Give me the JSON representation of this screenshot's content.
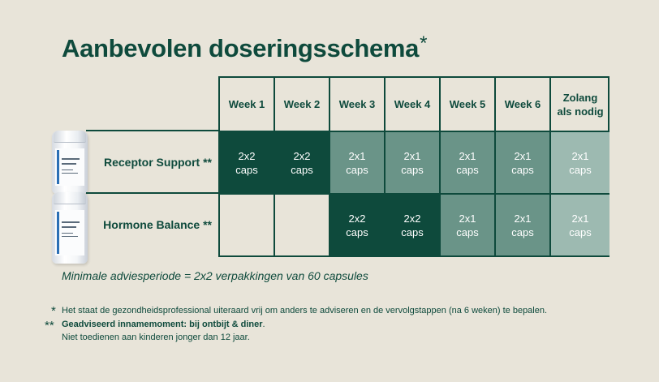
{
  "title": "Aanbevolen doseringsschema",
  "title_mark": "*",
  "table": {
    "columns": [
      "Week 1",
      "Week 2",
      "Week 3",
      "Week 4",
      "Week 5",
      "Week 6",
      "Zolang als nodig"
    ],
    "rows": [
      {
        "product": "Receptor Support **",
        "cells": [
          {
            "dose": "2x2",
            "unit": "caps",
            "shade": "dark"
          },
          {
            "dose": "2x2",
            "unit": "caps",
            "shade": "dark"
          },
          {
            "dose": "2x1",
            "unit": "caps",
            "shade": "mid"
          },
          {
            "dose": "2x1",
            "unit": "caps",
            "shade": "mid"
          },
          {
            "dose": "2x1",
            "unit": "caps",
            "shade": "mid"
          },
          {
            "dose": "2x1",
            "unit": "caps",
            "shade": "mid"
          },
          {
            "dose": "2x1",
            "unit": "caps",
            "shade": "light"
          }
        ]
      },
      {
        "product": "Hormone Balance **",
        "cells": [
          {
            "dose": "",
            "unit": "",
            "shade": "empty"
          },
          {
            "dose": "",
            "unit": "",
            "shade": "empty"
          },
          {
            "dose": "2x2",
            "unit": "caps",
            "shade": "dark"
          },
          {
            "dose": "2x2",
            "unit": "caps",
            "shade": "dark"
          },
          {
            "dose": "2x1",
            "unit": "caps",
            "shade": "mid"
          },
          {
            "dose": "2x1",
            "unit": "caps",
            "shade": "mid"
          },
          {
            "dose": "2x1",
            "unit": "caps",
            "shade": "light"
          }
        ]
      }
    ]
  },
  "bottles": [
    {
      "icon": "receptor-support-bottle-icon",
      "label_text": "Receptor Support"
    },
    {
      "icon": "hormone-balance-bottle-icon",
      "label_text": "Hormone Balance"
    }
  ],
  "min_period_note": "Minimale adviesperiode = 2x2 verpakkingen van 60 capsules",
  "footnotes": {
    "single_mark": "*",
    "single_text": "Het staat de gezondheidsprofessional uiteraard vrij om anders te adviseren en de vervolgstappen (na 6 weken) te bepalen.",
    "double_mark": "**",
    "double_bold": "Geadviseerd innamemoment: bij ontbijt & diner",
    "double_end": ".",
    "double_line2": "Niet toedienen aan kinderen jonger dan 12 jaar."
  },
  "colors": {
    "background": "#e8e4d9",
    "dark_green": "#0e4a3c",
    "mid_green": "#6a9488",
    "light_green": "#9dbab1"
  }
}
